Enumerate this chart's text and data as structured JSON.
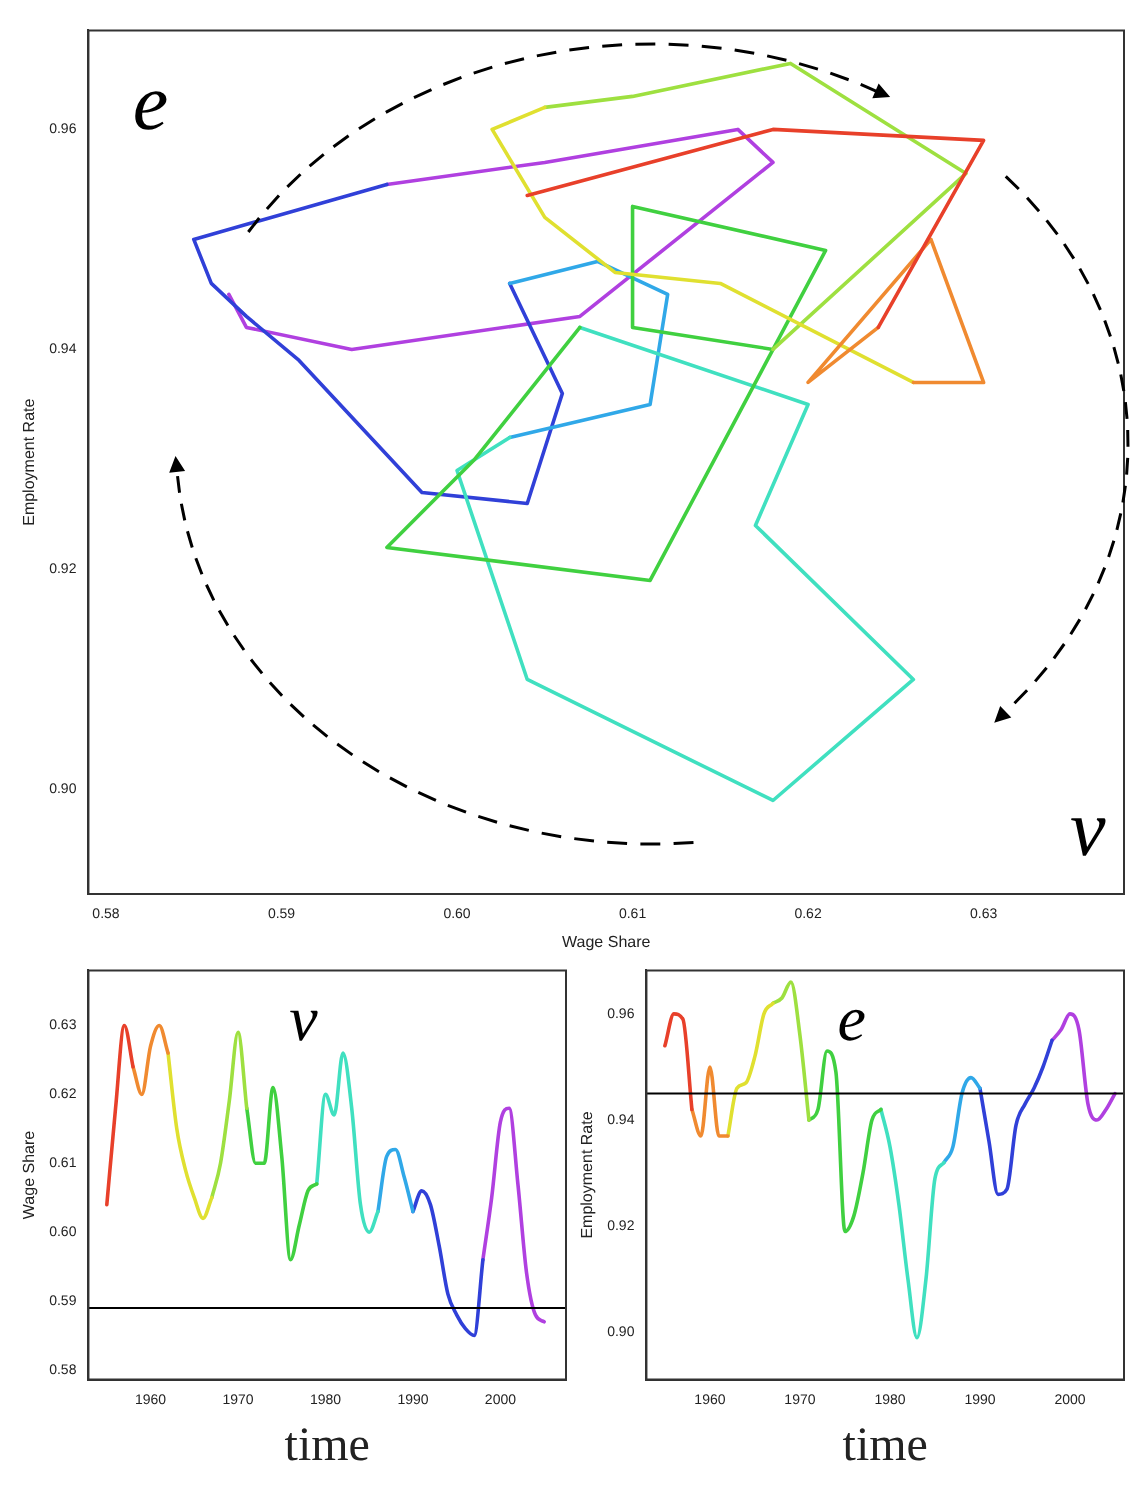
{
  "chart_data": [
    {
      "type": "line",
      "xlabel": "Wage Share",
      "ylabel": "Employment Rate",
      "annotations": [
        "e",
        "v"
      ],
      "grid": false,
      "legend": false,
      "xlim": [
        0.579,
        0.638
      ],
      "xticks": [
        {
          "value": 0.58,
          "label": "0.58"
        },
        {
          "value": 0.59,
          "label": "0.59"
        },
        {
          "value": 0.6,
          "label": "0.60"
        },
        {
          "value": 0.61,
          "label": "0.61"
        },
        {
          "value": 0.62,
          "label": "0.62"
        },
        {
          "value": 0.63,
          "label": "0.63"
        }
      ],
      "ylim": [
        0.8905,
        0.969
      ],
      "yticks": [
        {
          "value": 0.9,
          "label": "0.90"
        },
        {
          "value": 0.92,
          "label": "0.92"
        },
        {
          "value": 0.94,
          "label": "0.94"
        },
        {
          "value": 0.96,
          "label": "0.96"
        }
      ],
      "series": [
        {
          "color": "#e8402a",
          "x": [
            0.604,
            0.618,
            0.63,
            0.624
          ],
          "values": [
            0.954,
            0.96,
            0.959,
            0.942
          ]
        },
        {
          "color": "#f08a30",
          "x": [
            0.624,
            0.62,
            0.627,
            0.63,
            0.626
          ],
          "values": [
            0.942,
            0.937,
            0.95,
            0.937,
            0.937
          ]
        },
        {
          "color": "#e0e030",
          "x": [
            0.626,
            0.615,
            0.609,
            0.605,
            0.602,
            0.605
          ],
          "values": [
            0.937,
            0.946,
            0.947,
            0.952,
            0.96,
            0.962
          ]
        },
        {
          "color": "#9ee040",
          "x": [
            0.605,
            0.61,
            0.619,
            0.629,
            0.618
          ],
          "values": [
            0.962,
            0.963,
            0.966,
            0.956,
            0.94
          ]
        },
        {
          "color": "#40d040",
          "x": [
            0.618,
            0.61,
            0.61,
            0.621,
            0.611,
            0.596,
            0.601,
            0.606,
            0.607
          ],
          "values": [
            0.94,
            0.942,
            0.953,
            0.949,
            0.919,
            0.922,
            0.93,
            0.94,
            0.942
          ]
        },
        {
          "color": "#40e0c0",
          "x": [
            0.607,
            0.62,
            0.617,
            0.626,
            0.618,
            0.604,
            0.6,
            0.603
          ],
          "values": [
            0.942,
            0.935,
            0.924,
            0.91,
            0.899,
            0.91,
            0.929,
            0.932
          ]
        },
        {
          "color": "#30a8e8",
          "x": [
            0.603,
            0.611,
            0.612,
            0.608,
            0.603
          ],
          "values": [
            0.932,
            0.935,
            0.945,
            0.948,
            0.946
          ]
        },
        {
          "color": "#3040d8",
          "x": [
            0.603,
            0.606,
            0.604,
            0.598,
            0.591,
            0.588,
            0.586,
            0.585,
            0.596
          ],
          "values": [
            0.946,
            0.936,
            0.926,
            0.927,
            0.939,
            0.943,
            0.946,
            0.95,
            0.955
          ]
        },
        {
          "color": "#b040e0",
          "x": [
            0.596,
            0.605,
            0.616,
            0.618,
            0.607,
            0.594,
            0.588,
            0.587
          ],
          "values": [
            0.955,
            0.957,
            0.96,
            0.957,
            0.943,
            0.94,
            0.942,
            0.945
          ]
        }
      ]
    },
    {
      "type": "line",
      "xlabel": "time",
      "ylabel": "Wage Share",
      "annotations": [
        "v"
      ],
      "grid": false,
      "legend": false,
      "xlim": [
        1952.9,
        2007.5
      ],
      "xticks": [
        1960,
        1970,
        1980,
        1990,
        2000
      ],
      "ylim": [
        0.5786,
        0.638
      ],
      "yticks": [
        0.58,
        0.59,
        {
          "value": 0.6,
          "label": "0.60"
        },
        0.61,
        0.62,
        0.63
      ],
      "ref_lines": [
        {
          "axis": "y",
          "value": 0.589,
          "color": "#000000"
        }
      ],
      "series": [
        {
          "color": "#e8402a",
          "x": [
            1955,
            1956,
            1957,
            1958
          ],
          "values": [
            0.604,
            0.618,
            0.63,
            0.624
          ]
        },
        {
          "color": "#f08a30",
          "x": [
            1958,
            1959,
            1960,
            1961,
            1962
          ],
          "values": [
            0.624,
            0.62,
            0.627,
            0.63,
            0.626
          ]
        },
        {
          "color": "#e0e030",
          "x": [
            1962,
            1963,
            1964,
            1965,
            1966,
            1967
          ],
          "values": [
            0.626,
            0.615,
            0.609,
            0.605,
            0.602,
            0.605
          ]
        },
        {
          "color": "#9ee040",
          "x": [
            1967,
            1968,
            1969,
            1970,
            1971
          ],
          "values": [
            0.605,
            0.61,
            0.619,
            0.629,
            0.618
          ]
        },
        {
          "color": "#40d040",
          "x": [
            1971,
            1972,
            1973,
            1974,
            1975,
            1976,
            1977,
            1978,
            1979
          ],
          "values": [
            0.618,
            0.61,
            0.61,
            0.621,
            0.611,
            0.596,
            0.601,
            0.606,
            0.607
          ]
        },
        {
          "color": "#40e0c0",
          "x": [
            1979,
            1980,
            1981,
            1982,
            1983,
            1984,
            1985,
            1986
          ],
          "values": [
            0.607,
            0.62,
            0.617,
            0.626,
            0.618,
            0.604,
            0.6,
            0.603
          ]
        },
        {
          "color": "#30a8e8",
          "x": [
            1986,
            1987,
            1988,
            1989,
            1990
          ],
          "values": [
            0.603,
            0.611,
            0.612,
            0.608,
            0.603
          ]
        },
        {
          "color": "#3040d8",
          "x": [
            1990,
            1991,
            1992,
            1993,
            1994,
            1995,
            1996,
            1997,
            1998
          ],
          "values": [
            0.603,
            0.606,
            0.604,
            0.598,
            0.591,
            0.588,
            0.586,
            0.585,
            0.596
          ]
        },
        {
          "color": "#b040e0",
          "x": [
            1998,
            1999,
            2000,
            2001,
            2002,
            2003,
            2004,
            2005
          ],
          "values": [
            0.596,
            0.605,
            0.616,
            0.618,
            0.607,
            0.594,
            0.588,
            0.587
          ]
        }
      ]
    },
    {
      "type": "line",
      "xlabel": "time",
      "ylabel": "Employment Rate",
      "annotations": [
        "e"
      ],
      "grid": false,
      "legend": false,
      "xlim": [
        1952.95,
        2006
      ],
      "xticks": [
        1960,
        1970,
        1980,
        1990,
        2000
      ],
      "ylim": [
        0.8911,
        0.9682
      ],
      "yticks": [
        {
          "value": 0.9,
          "label": "0.90"
        },
        0.92,
        0.94,
        0.96
      ],
      "ref_lines": [
        {
          "axis": "y",
          "value": 0.945,
          "color": "#000000"
        }
      ],
      "series": [
        {
          "color": "#e8402a",
          "x": [
            1955,
            1956,
            1957,
            1958
          ],
          "values": [
            0.954,
            0.96,
            0.959,
            0.942
          ]
        },
        {
          "color": "#f08a30",
          "x": [
            1958,
            1959,
            1960,
            1961,
            1962
          ],
          "values": [
            0.942,
            0.937,
            0.95,
            0.937,
            0.937
          ]
        },
        {
          "color": "#e0e030",
          "x": [
            1962,
            1963,
            1964,
            1965,
            1966,
            1967
          ],
          "values": [
            0.937,
            0.946,
            0.947,
            0.952,
            0.96,
            0.962
          ]
        },
        {
          "color": "#9ee040",
          "x": [
            1967,
            1968,
            1969,
            1970,
            1971
          ],
          "values": [
            0.962,
            0.963,
            0.966,
            0.956,
            0.94
          ]
        },
        {
          "color": "#40d040",
          "x": [
            1971,
            1972,
            1973,
            1974,
            1975,
            1976,
            1977,
            1978,
            1979
          ],
          "values": [
            0.94,
            0.942,
            0.953,
            0.949,
            0.919,
            0.922,
            0.93,
            0.94,
            0.942
          ]
        },
        {
          "color": "#40e0c0",
          "x": [
            1979,
            1980,
            1981,
            1982,
            1983,
            1984,
            1985,
            1986
          ],
          "values": [
            0.942,
            0.935,
            0.924,
            0.91,
            0.899,
            0.91,
            0.929,
            0.932
          ]
        },
        {
          "color": "#30a8e8",
          "x": [
            1986,
            1987,
            1988,
            1989,
            1990
          ],
          "values": [
            0.932,
            0.935,
            0.945,
            0.948,
            0.946
          ]
        },
        {
          "color": "#3040d8",
          "x": [
            1990,
            1991,
            1992,
            1993,
            1994,
            1995,
            1996,
            1997,
            1998
          ],
          "values": [
            0.946,
            0.936,
            0.926,
            0.927,
            0.939,
            0.943,
            0.946,
            0.95,
            0.955
          ]
        },
        {
          "color": "#b040e0",
          "x": [
            1998,
            1999,
            2000,
            2001,
            2002,
            2003,
            2004,
            2005
          ],
          "values": [
            0.955,
            0.957,
            0.96,
            0.957,
            0.943,
            0.94,
            0.942,
            0.945
          ]
        }
      ]
    }
  ]
}
